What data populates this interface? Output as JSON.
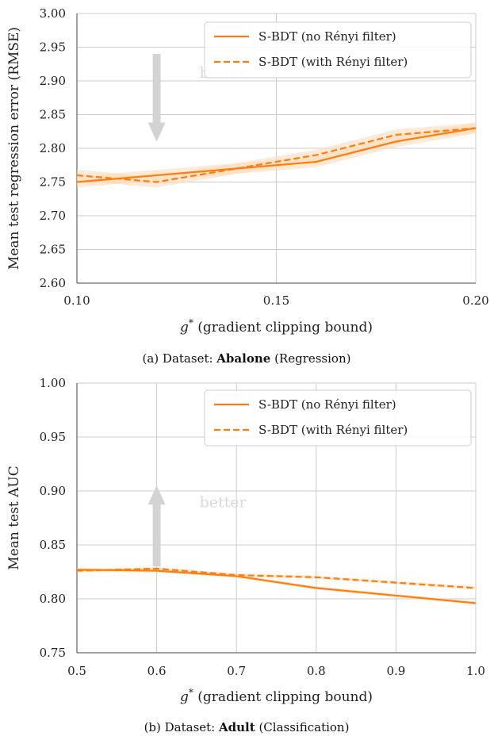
{
  "chart_data": [
    {
      "type": "line",
      "xlabel": "g* (gradient clipping bound)",
      "xlabel_var": "g",
      "xlabel_sup": "*",
      "xlabel_rest": " (gradient clipping bound)",
      "ylabel": "Mean test regression error (RMSE)",
      "xlim": [
        0.1,
        0.2
      ],
      "ylim": [
        2.6,
        3.0
      ],
      "xticks": [
        "0.10",
        "0.15",
        "0.20"
      ],
      "xtick_values": [
        0.1,
        0.15,
        0.2
      ],
      "yticks": [
        "2.60",
        "2.65",
        "2.70",
        "2.75",
        "2.80",
        "2.85",
        "2.90",
        "2.95",
        "3.00"
      ],
      "ytick_values": [
        2.6,
        2.65,
        2.7,
        2.75,
        2.8,
        2.85,
        2.9,
        2.95,
        3.0
      ],
      "grid": true,
      "legend_position": "top-right",
      "annotation": "better",
      "arrow_direction": "down",
      "arrow_x": 0.12,
      "arrow_y": [
        2.94,
        2.81
      ],
      "caption": {
        "prefix": "(a) Dataset: ",
        "bold": "Abalone",
        "suffix": " (Regression)"
      },
      "series": [
        {
          "name": "S-BDT (no Rényi filter)",
          "style": "solid",
          "x": [
            0.1,
            0.12,
            0.14,
            0.16,
            0.18,
            0.2
          ],
          "y": [
            2.75,
            2.76,
            2.77,
            2.78,
            2.81,
            2.83
          ],
          "band": 0.008
        },
        {
          "name": "S-BDT (with Rényi filter)",
          "style": "dashed",
          "x": [
            0.1,
            0.12,
            0.14,
            0.16,
            0.18,
            0.2
          ],
          "y": [
            2.76,
            2.75,
            2.77,
            2.79,
            2.82,
            2.83
          ],
          "band": 0.008
        }
      ]
    },
    {
      "type": "line",
      "xlabel": "g* (gradient clipping bound)",
      "xlabel_var": "g",
      "xlabel_sup": "*",
      "xlabel_rest": " (gradient clipping bound)",
      "ylabel": "Mean test AUC",
      "xlim": [
        0.5,
        1.0
      ],
      "ylim": [
        0.75,
        1.0
      ],
      "xticks": [
        "0.5",
        "0.6",
        "0.7",
        "0.8",
        "0.9",
        "1.0"
      ],
      "xtick_values": [
        0.5,
        0.6,
        0.7,
        0.8,
        0.9,
        1.0
      ],
      "yticks": [
        "0.75",
        "0.80",
        "0.85",
        "0.90",
        "0.95",
        "1.00"
      ],
      "ytick_values": [
        0.75,
        0.8,
        0.85,
        0.9,
        0.95,
        1.0
      ],
      "grid": true,
      "legend_position": "top-right",
      "annotation": "better",
      "arrow_direction": "up",
      "arrow_x": 0.6,
      "arrow_y": [
        0.83,
        0.905
      ],
      "caption": {
        "prefix": "(b) Dataset: ",
        "bold": "Adult",
        "suffix": " (Classification)"
      },
      "series": [
        {
          "name": "S-BDT (no Rényi filter)",
          "style": "solid",
          "x": [
            0.5,
            0.6,
            0.7,
            0.8,
            0.9,
            1.0
          ],
          "y": [
            0.827,
            0.826,
            0.821,
            0.81,
            0.803,
            0.796
          ],
          "band": 0.0015
        },
        {
          "name": "S-BDT (with Rényi filter)",
          "style": "dashed",
          "x": [
            0.5,
            0.6,
            0.7,
            0.8,
            0.9,
            1.0
          ],
          "y": [
            0.826,
            0.828,
            0.822,
            0.82,
            0.815,
            0.81
          ],
          "band": 0.0015
        }
      ]
    }
  ],
  "colors": {
    "series": "#ff7f0e",
    "band": "#ffd9b8",
    "grid": "#cccccc",
    "axis": "#444444",
    "arrow": "#d3d3d3"
  }
}
